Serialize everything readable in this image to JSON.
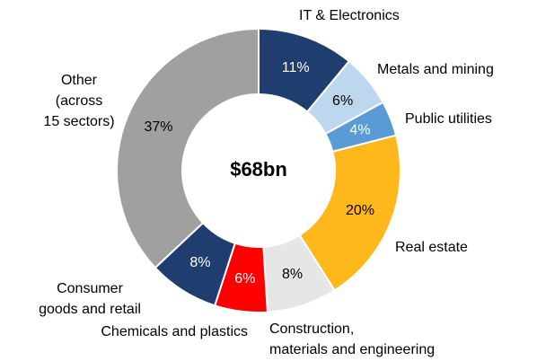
{
  "chart_data": {
    "type": "donut",
    "center_label": "$68bn",
    "categories": [
      [
        "IT & Electronics"
      ],
      [
        "Metals and mining"
      ],
      [
        "Public utilities"
      ],
      [
        "Real estate"
      ],
      [
        "Construction,",
        "materials and engineering"
      ],
      [
        "Chemicals and plastics"
      ],
      [
        "Consumer",
        "goods and retail"
      ],
      [
        "Other",
        "(across",
        "15 sectors)"
      ]
    ],
    "values": [
      11,
      6,
      4,
      20,
      8,
      6,
      8,
      37
    ],
    "value_labels": [
      "11%",
      "6%",
      "4%",
      "20%",
      "8%",
      "6%",
      "8%",
      "37%"
    ],
    "colors": [
      "#1f3d6e",
      "#bdd7ee",
      "#5b9bd5",
      "#ffb81c",
      "#e6e6e6",
      "#ff0000",
      "#1f3d6e",
      "#a0a0a0"
    ]
  }
}
